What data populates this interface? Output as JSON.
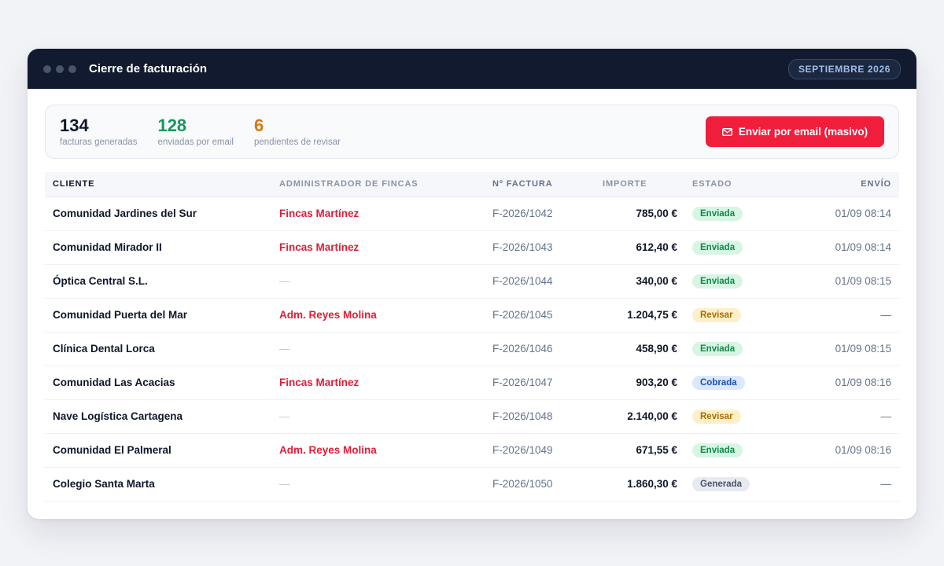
{
  "window": {
    "title": "Cierre de facturación",
    "period_badge": "SEPTIEMBRE 2026"
  },
  "summary": {
    "stats": [
      {
        "value": "134",
        "label": "facturas generadas",
        "color": "#0f172a"
      },
      {
        "value": "128",
        "label": "enviadas por email",
        "color": "#16965a"
      },
      {
        "value": "6",
        "label": "pendientes de revisar",
        "color": "#d97706"
      }
    ],
    "send_button": {
      "label": "Enviar por email (masivo)",
      "icon": "mail-icon"
    }
  },
  "table": {
    "columns": [
      "CLIENTE",
      "ADMINISTRADOR DE FINCAS",
      "Nº FACTURA",
      "IMPORTE",
      "ESTADO",
      "ENVÍO"
    ],
    "rows": [
      {
        "client": "Comunidad Jardines del Sur",
        "admin": "Fincas Martínez",
        "invoice": "F-2026/1042",
        "amount": "785,00 €",
        "status": "Enviada",
        "sent": "01/09 08:14"
      },
      {
        "client": "Comunidad Mirador II",
        "admin": "Fincas Martínez",
        "invoice": "F-2026/1043",
        "amount": "612,40 €",
        "status": "Enviada",
        "sent": "01/09 08:14"
      },
      {
        "client": "Óptica Central S.L.",
        "admin": "—",
        "invoice": "F-2026/1044",
        "amount": "340,00 €",
        "status": "Enviada",
        "sent": "01/09 08:15"
      },
      {
        "client": "Comunidad Puerta del Mar",
        "admin": "Adm. Reyes Molina",
        "invoice": "F-2026/1045",
        "amount": "1.204,75 €",
        "status": "Revisar",
        "sent": "—"
      },
      {
        "client": "Clínica Dental Lorca",
        "admin": "—",
        "invoice": "F-2026/1046",
        "amount": "458,90 €",
        "status": "Enviada",
        "sent": "01/09 08:15"
      },
      {
        "client": "Comunidad Las Acacias",
        "admin": "Fincas Martínez",
        "invoice": "F-2026/1047",
        "amount": "903,20 €",
        "status": "Cobrada",
        "sent": "01/09 08:16"
      },
      {
        "client": "Nave Logística Cartagena",
        "admin": "—",
        "invoice": "F-2026/1048",
        "amount": "2.140,00 €",
        "status": "Revisar",
        "sent": "—"
      },
      {
        "client": "Comunidad El Palmeral",
        "admin": "Adm. Reyes Molina",
        "invoice": "F-2026/1049",
        "amount": "671,55 €",
        "status": "Enviada",
        "sent": "01/09 08:16"
      },
      {
        "client": "Colegio Santa Marta",
        "admin": "—",
        "invoice": "F-2026/1050",
        "amount": "1.860,30 €",
        "status": "Generada",
        "sent": "—"
      }
    ]
  }
}
